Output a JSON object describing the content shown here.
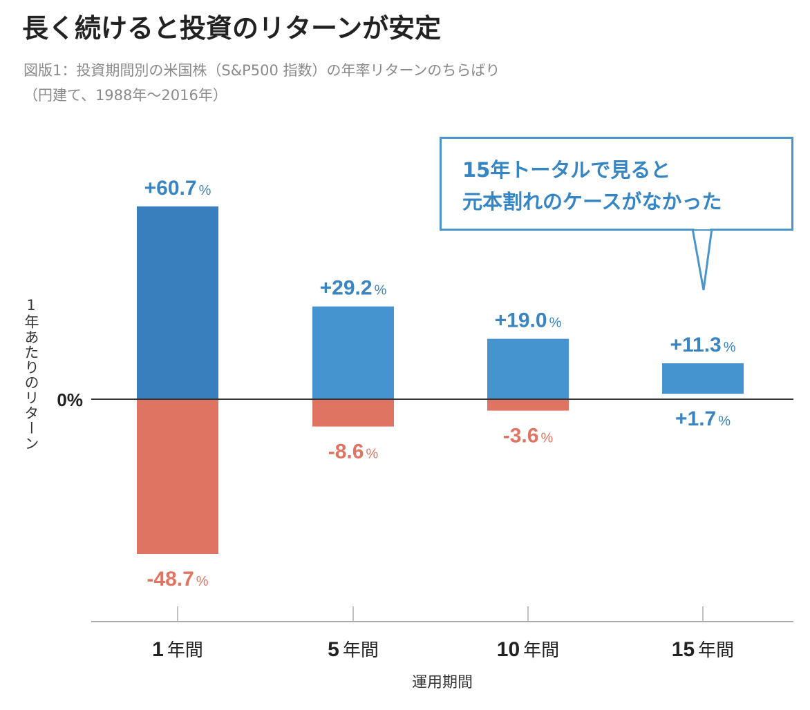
{
  "title": "長く続けると投資のリターンが安定",
  "subtitle": {
    "line1": "図版1：投資期間別の米国株（S&P500 指数）の年率リターンのちらばり",
    "line2": "（円建て、1988年〜2016年）"
  },
  "callout": {
    "line1": "15年トータルで見ると",
    "line2": "元本割れのケースがなかった"
  },
  "colors": {
    "positive_dark": "#3a7fbd",
    "positive": "#4593cf",
    "negative": "#e07462",
    "positive_label": "#3a84c1",
    "negative_label": "#e07462",
    "axis": "#333333",
    "tick": "#aaaaaa"
  },
  "chart_data": {
    "type": "bar",
    "description_type": "floating range bar",
    "categories": [
      "1",
      "5",
      "10",
      "15"
    ],
    "category_suffix": "年間",
    "max": [
      60.7,
      29.2,
      19.0,
      11.3
    ],
    "min": [
      -48.7,
      -8.6,
      -3.6,
      1.7
    ],
    "max_labels": [
      "+60.7",
      "+29.2",
      "+19.0",
      "+11.3"
    ],
    "min_labels": [
      "-48.7",
      "-8.6",
      "-3.6",
      "+1.7"
    ],
    "unit": "%",
    "zero_label": "0%",
    "xlabel": "運用期間",
    "ylabel": "1年あたりのリターン"
  }
}
